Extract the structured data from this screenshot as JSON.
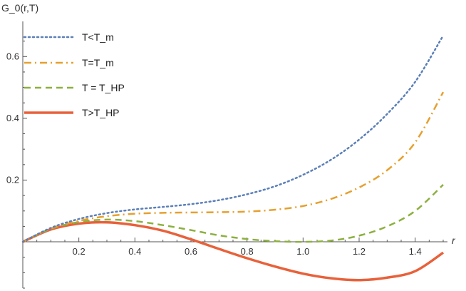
{
  "chart_data": {
    "type": "line",
    "title": "",
    "xlabel": "r",
    "ylabel": "G_0(r,T)",
    "xlim": [
      0,
      1.5
    ],
    "ylim": [
      -0.15,
      0.7
    ],
    "grid": false,
    "legend_position": "top-left",
    "x_ticks": [
      {
        "value": 0.2,
        "label": "0.2"
      },
      {
        "value": 0.4,
        "label": "0.4"
      },
      {
        "value": 0.6,
        "label": "0.6"
      },
      {
        "value": 0.8,
        "label": "0.8"
      },
      {
        "value": 1.0,
        "label": "1.0"
      },
      {
        "value": 1.2,
        "label": "1.2"
      },
      {
        "value": 1.4,
        "label": "1.4"
      }
    ],
    "y_ticks": [
      {
        "value": 0.2,
        "label": "0.2"
      },
      {
        "value": 0.4,
        "label": "0.4"
      },
      {
        "value": 0.6,
        "label": "0.6"
      }
    ],
    "x": [
      0,
      0.1,
      0.2,
      0.3,
      0.4,
      0.5,
      0.6,
      0.7,
      0.8,
      0.9,
      1.0,
      1.1,
      1.2,
      1.3,
      1.4,
      1.5
    ],
    "series": [
      {
        "name": "T<T_m",
        "color": "#5b7fb8",
        "style": "dotted",
        "values": [
          0,
          0.045,
          0.074,
          0.093,
          0.105,
          0.113,
          0.122,
          0.135,
          0.154,
          0.18,
          0.217,
          0.266,
          0.331,
          0.414,
          0.518,
          0.668
        ]
      },
      {
        "name": "T=T_m",
        "color": "#e6a02e",
        "style": "dashdot",
        "values": [
          0,
          0.043,
          0.068,
          0.083,
          0.091,
          0.094,
          0.095,
          0.096,
          0.098,
          0.104,
          0.116,
          0.139,
          0.176,
          0.232,
          0.322,
          0.485
        ]
      },
      {
        "name": "T = T_HP",
        "color": "#8cb03f",
        "style": "dashed",
        "values": [
          0,
          0.042,
          0.064,
          0.072,
          0.067,
          0.054,
          0.038,
          0.021,
          0.009,
          0.002,
          0.0,
          0.004,
          0.02,
          0.05,
          0.1,
          0.185
        ]
      },
      {
        "name": "T>T_HP",
        "color": "#e8613a",
        "style": "solid",
        "values": [
          0,
          0.04,
          0.059,
          0.063,
          0.054,
          0.036,
          0.008,
          -0.023,
          -0.053,
          -0.08,
          -0.103,
          -0.118,
          -0.124,
          -0.116,
          -0.095,
          -0.035
        ]
      }
    ]
  }
}
